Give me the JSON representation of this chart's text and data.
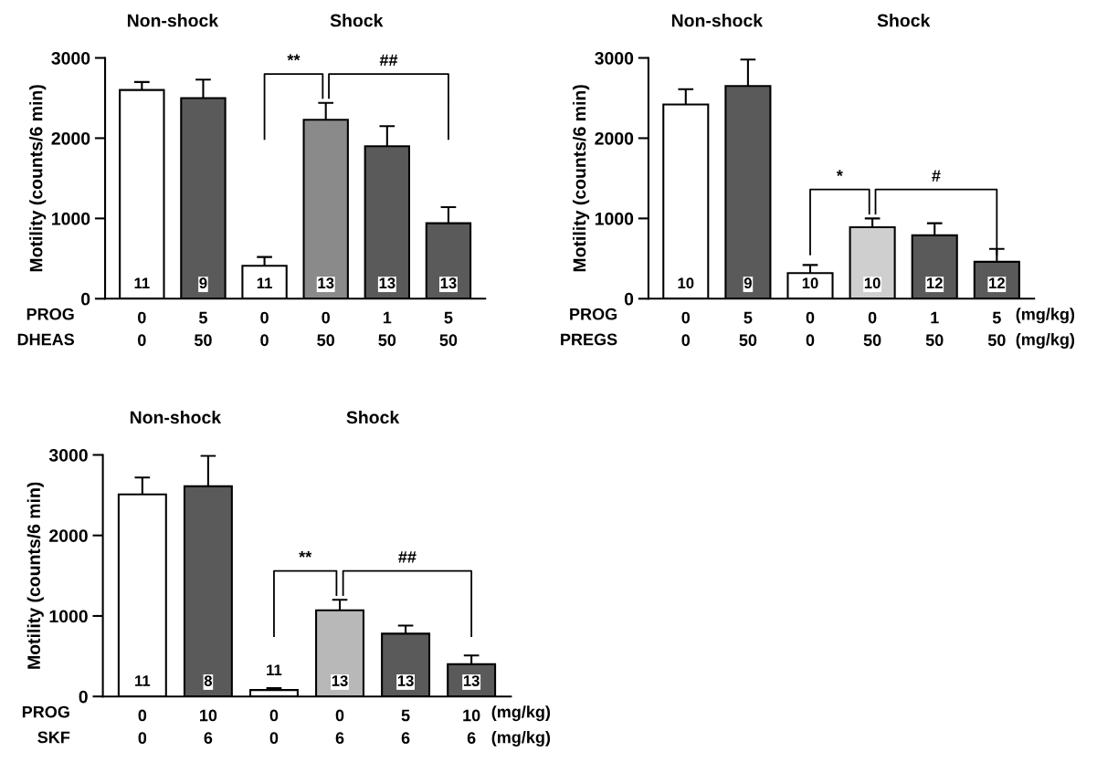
{
  "chart_data": [
    {
      "type": "bar",
      "ylabel": "Motility (counts/6 min)",
      "categories": [
        "0\n0",
        "5\n50",
        "0\n0",
        "0\n50",
        "1\n50",
        "5\n50"
      ],
      "values": [
        2600,
        2500,
        410,
        2230,
        1900,
        940
      ],
      "errors": [
        100,
        230,
        110,
        210,
        250,
        200
      ],
      "colors": [
        "#ffffff",
        "#5a5a5a",
        "#ffffff",
        "#8a8a8a",
        "#5a5a5a",
        "#5a5a5a"
      ],
      "ylim": [
        0,
        3000
      ],
      "yticks": [
        0,
        1000,
        2000,
        3000
      ],
      "grid": false,
      "legend": false,
      "annotations": [
        "Non-shock",
        "Shock",
        "**",
        "##",
        "11",
        "9",
        "11",
        "13",
        "13",
        "13",
        "PROG",
        "DHEAS"
      ]
    },
    {
      "type": "bar",
      "ylabel": "Motility (counts/6 min)",
      "categories": [
        "0\n0",
        "5\n50",
        "0\n0",
        "0\n50",
        "1\n50",
        "5\n50"
      ],
      "values": [
        2420,
        2650,
        320,
        890,
        790,
        460
      ],
      "errors": [
        190,
        330,
        100,
        110,
        150,
        160
      ],
      "colors": [
        "#ffffff",
        "#5a5a5a",
        "#ffffff",
        "#cfcfcf",
        "#5a5a5a",
        "#5a5a5a"
      ],
      "ylim": [
        0,
        3000
      ],
      "yticks": [
        0,
        1000,
        2000,
        3000
      ],
      "grid": false,
      "legend": false,
      "annotations": [
        "Non-shock",
        "Shock",
        "*",
        "#",
        "10",
        "9",
        "10",
        "10",
        "12",
        "12",
        "PROG",
        "PREGS",
        "(mg/kg)",
        "(mg/kg)"
      ]
    },
    {
      "type": "bar",
      "ylabel": "Motility (counts/6 min)",
      "categories": [
        "0\n0",
        "10\n6",
        "0\n0",
        "0\n6",
        "5\n6",
        "10\n6"
      ],
      "values": [
        2510,
        2610,
        80,
        1070,
        780,
        400
      ],
      "errors": [
        210,
        380,
        25,
        130,
        100,
        110
      ],
      "colors": [
        "#ffffff",
        "#5a5a5a",
        "#ffffff",
        "#b8b8b8",
        "#5a5a5a",
        "#5a5a5a"
      ],
      "ylim": [
        0,
        3000
      ],
      "yticks": [
        0,
        1000,
        2000,
        3000
      ],
      "grid": false,
      "legend": false,
      "annotations": [
        "Non-shock",
        "Shock",
        "**",
        "##",
        "11",
        "8",
        "11",
        "13",
        "13",
        "13",
        "PROG",
        "SKF",
        "(mg/kg)",
        "(mg/kg)"
      ]
    }
  ]
}
